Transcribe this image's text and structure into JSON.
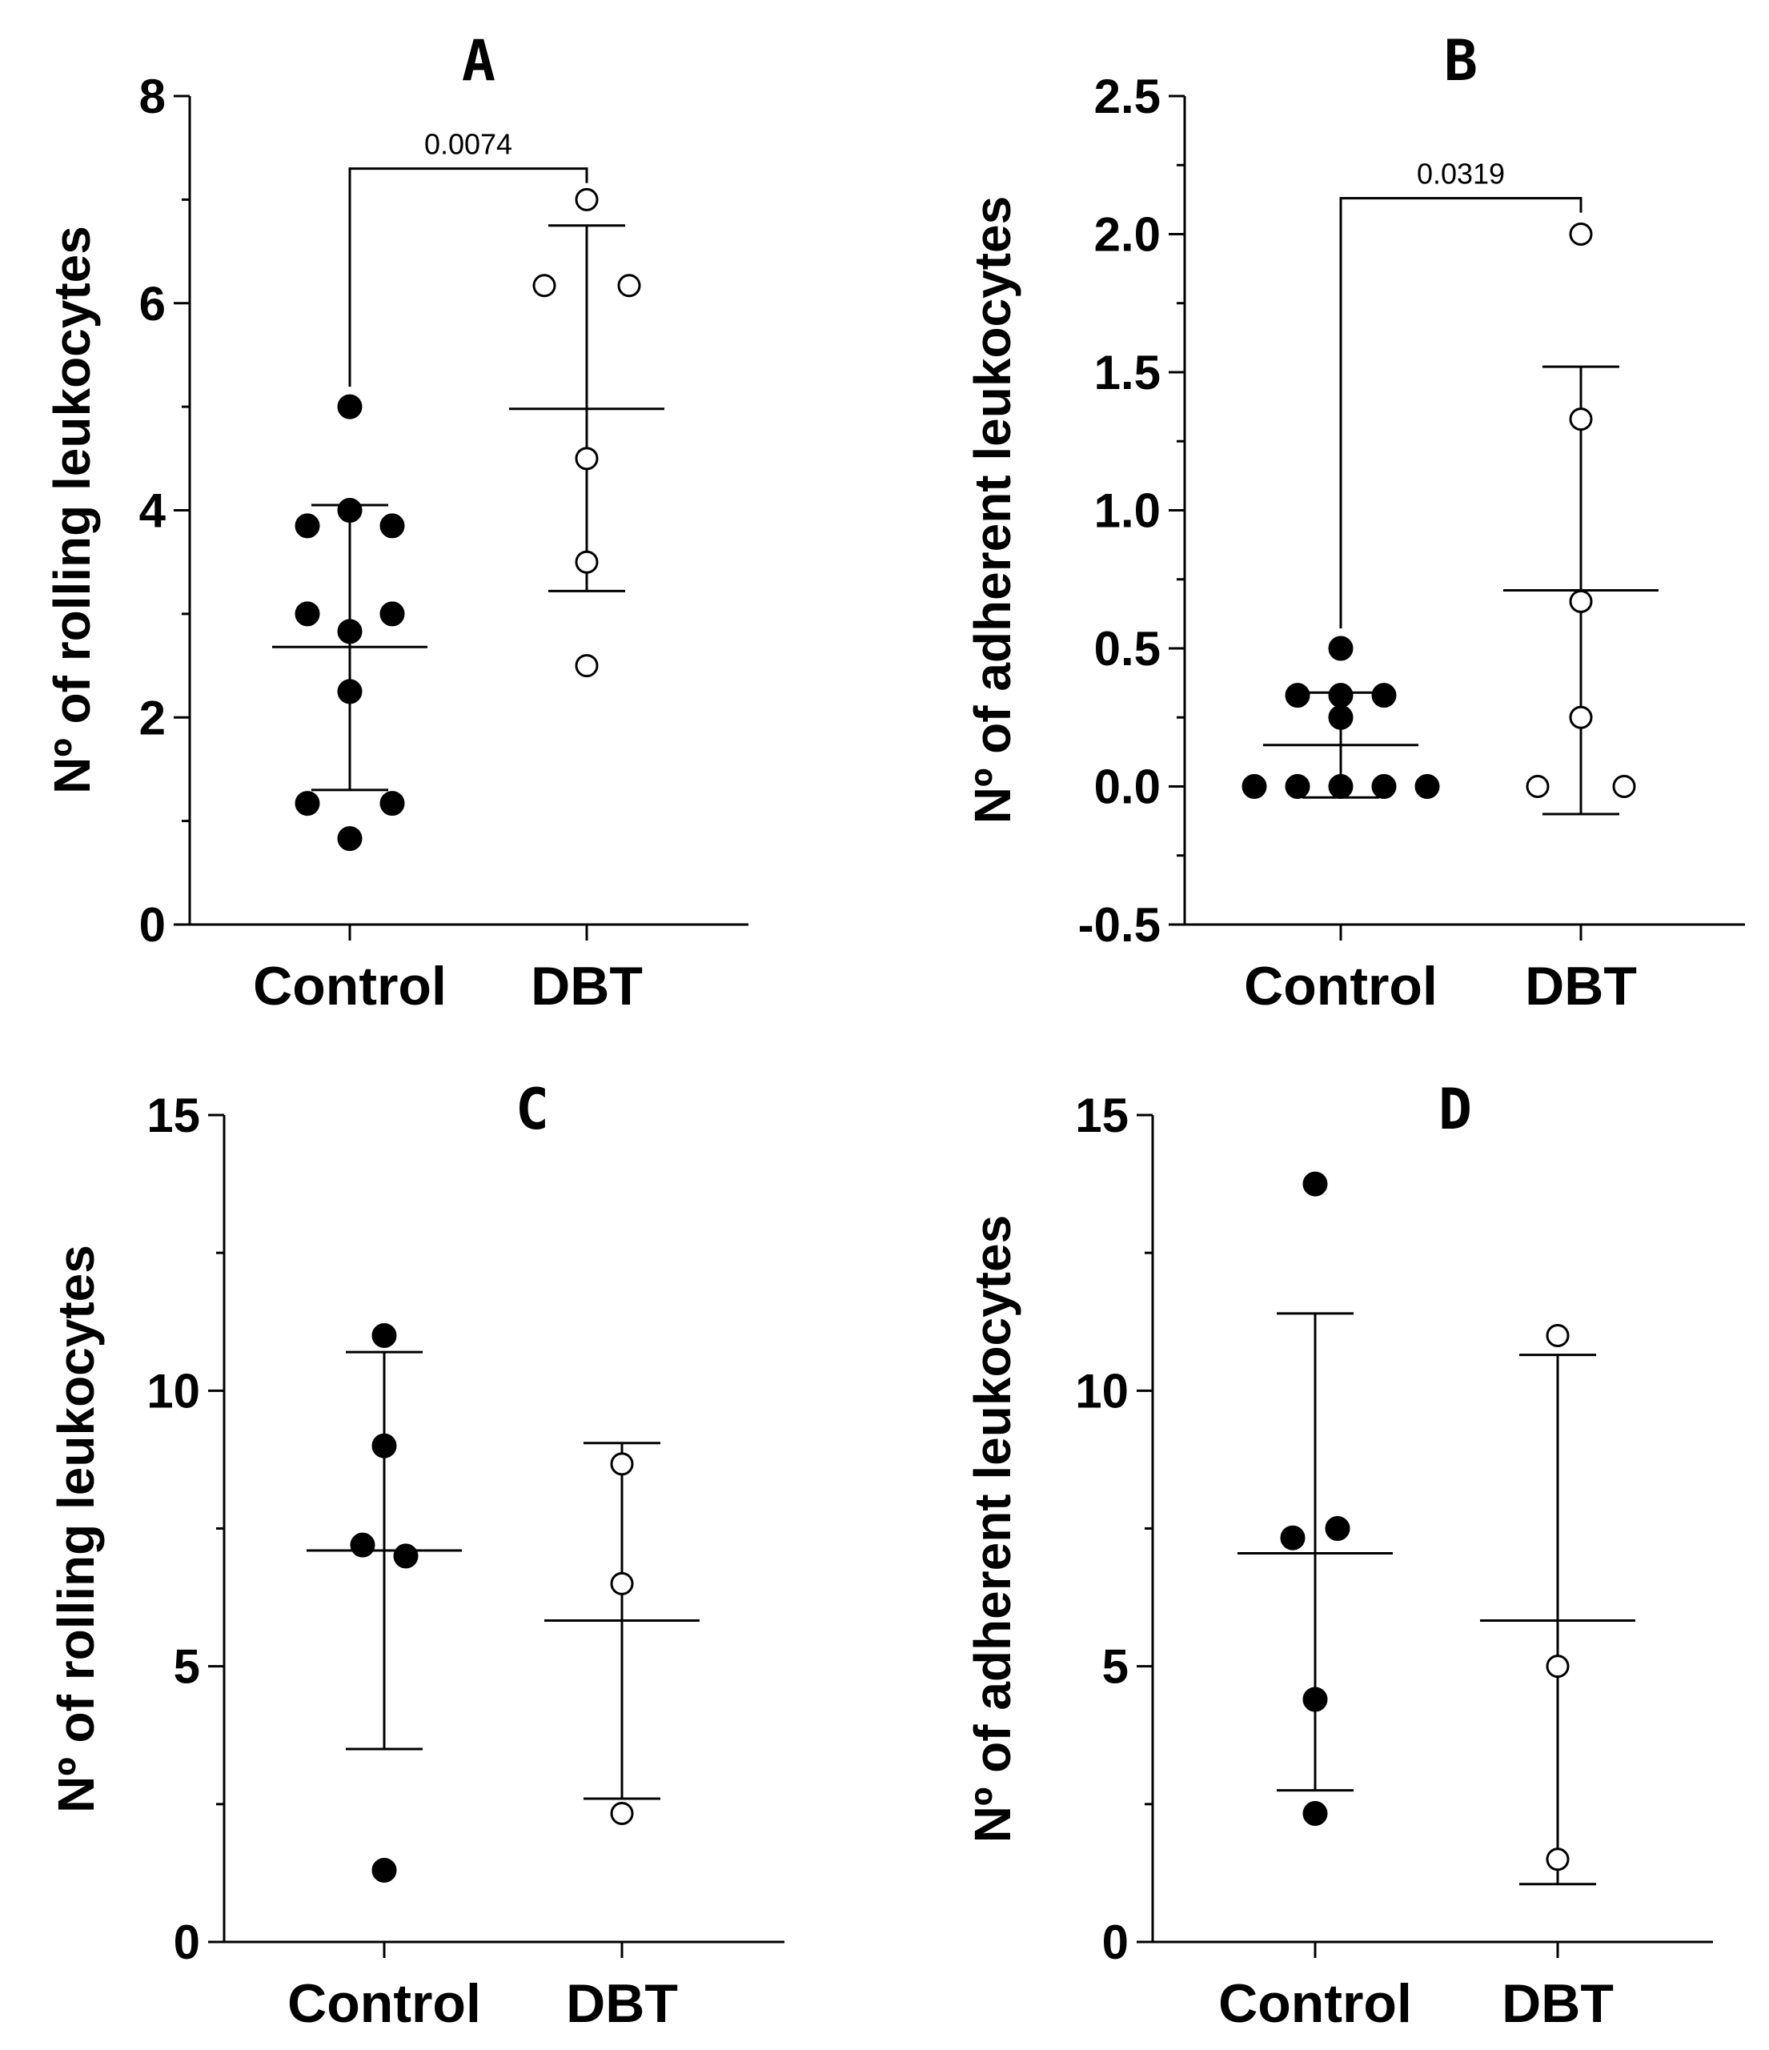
{
  "chart_data": [
    {
      "type": "scatter",
      "panel": "A",
      "ylabel": "Nº of rolling leukocytes",
      "ylim": [
        0,
        8
      ],
      "yticks": [
        "0",
        "2",
        "4",
        "6",
        "8"
      ],
      "yminor": [
        1,
        3,
        5,
        7
      ],
      "categories": [
        "Control",
        "DBT"
      ],
      "series": [
        {
          "name": "Control",
          "filled": true,
          "mean": 2.68,
          "sd_low": 1.3,
          "sd_high": 4.05,
          "points": [
            {
              "x": 0,
              "y": 5.0
            },
            {
              "x": -1,
              "y": 3.85
            },
            {
              "x": 0,
              "y": 4.0
            },
            {
              "x": 1,
              "y": 3.85
            },
            {
              "x": -1,
              "y": 3.0
            },
            {
              "x": 1,
              "y": 3.0
            },
            {
              "x": 0,
              "y": 2.83
            },
            {
              "x": 0,
              "y": 2.25
            },
            {
              "x": -1,
              "y": 1.17
            },
            {
              "x": 1,
              "y": 1.17
            },
            {
              "x": 0,
              "y": 0.83
            }
          ]
        },
        {
          "name": "DBT",
          "filled": false,
          "mean": 4.98,
          "sd_low": 3.22,
          "sd_high": 6.75,
          "points": [
            {
              "x": 0,
              "y": 7.0
            },
            {
              "x": -1,
              "y": 6.17
            },
            {
              "x": 1,
              "y": 6.17
            },
            {
              "x": 0,
              "y": 4.5
            },
            {
              "x": 0,
              "y": 3.5
            },
            {
              "x": 0,
              "y": 2.5
            }
          ]
        }
      ],
      "significance": {
        "label": "0.0074",
        "y": 7.3
      }
    },
    {
      "type": "scatter",
      "panel": "B",
      "ylabel": "Nº of adherent leukocytes",
      "ylim": [
        -0.5,
        2.5
      ],
      "yticks": [
        "-0.5",
        "0.0",
        "0.5",
        "1.0",
        "1.5",
        "2.0",
        "2.5"
      ],
      "yminor": [
        -0.25,
        0.25,
        0.75,
        1.25,
        1.75,
        2.25
      ],
      "categories": [
        "Control",
        "DBT"
      ],
      "series": [
        {
          "name": "Control",
          "filled": true,
          "mean": 0.15,
          "sd_low": -0.04,
          "sd_high": 0.34,
          "points": [
            {
              "x": 0,
              "y": 0.5
            },
            {
              "x": -1,
              "y": 0.33
            },
            {
              "x": 0,
              "y": 0.33
            },
            {
              "x": 1,
              "y": 0.33
            },
            {
              "x": 0,
              "y": 0.25
            },
            {
              "x": -2,
              "y": 0
            },
            {
              "x": -1,
              "y": 0
            },
            {
              "x": 0,
              "y": 0
            },
            {
              "x": 1,
              "y": 0
            },
            {
              "x": 2,
              "y": 0
            }
          ]
        },
        {
          "name": "DBT",
          "filled": false,
          "mean": 0.71,
          "sd_low": -0.1,
          "sd_high": 1.52,
          "points": [
            {
              "x": 0,
              "y": 2.0
            },
            {
              "x": 0,
              "y": 1.33
            },
            {
              "x": 0,
              "y": 0.67
            },
            {
              "x": 0,
              "y": 0.25
            },
            {
              "x": -1,
              "y": 0
            },
            {
              "x": 1,
              "y": 0
            }
          ]
        }
      ],
      "significance": {
        "label": "0.0319",
        "y": 2.13
      }
    },
    {
      "type": "scatter",
      "panel": "C",
      "ylabel": "Nº of rolling leukocytes",
      "ylim": [
        0,
        15
      ],
      "yticks": [
        "0",
        "5",
        "10",
        "15"
      ],
      "yminor": [
        2.5,
        7.5,
        12.5
      ],
      "categories": [
        "Control",
        "DBT"
      ],
      "series": [
        {
          "name": "Control",
          "filled": true,
          "mean": 7.1,
          "sd_low": 3.5,
          "sd_high": 10.7,
          "points": [
            {
              "x": 0,
              "y": 11.0
            },
            {
              "x": 0,
              "y": 9.0
            },
            {
              "x": -1,
              "y": 7.2
            },
            {
              "x": 1,
              "y": 7.0
            },
            {
              "x": 0,
              "y": 1.3
            }
          ]
        },
        {
          "name": "DBT",
          "filled": false,
          "mean": 5.83,
          "sd_low": 2.6,
          "sd_high": 9.05,
          "points": [
            {
              "x": 0,
              "y": 8.67
            },
            {
              "x": 0,
              "y": 6.5
            },
            {
              "x": 0,
              "y": 2.33
            }
          ]
        }
      ],
      "significance": null
    },
    {
      "type": "scatter",
      "panel": "D",
      "ylabel": "Nº of adherent leukocytes",
      "ylim": [
        0,
        15
      ],
      "yticks": [
        "0",
        "5",
        "10",
        "15"
      ],
      "yminor": [
        2.5,
        7.5,
        12.5
      ],
      "categories": [
        "Control",
        "DBT"
      ],
      "series": [
        {
          "name": "Control",
          "filled": true,
          "mean": 7.05,
          "sd_low": 2.75,
          "sd_high": 11.4,
          "points": [
            {
              "x": 0,
              "y": 13.75
            },
            {
              "x": -1,
              "y": 7.33
            },
            {
              "x": 1,
              "y": 7.5
            },
            {
              "x": 0,
              "y": 4.4
            },
            {
              "x": 0,
              "y": 2.33
            }
          ]
        },
        {
          "name": "DBT",
          "filled": false,
          "mean": 5.83,
          "sd_low": 1.05,
          "sd_high": 10.65,
          "points": [
            {
              "x": 0,
              "y": 11.0
            },
            {
              "x": 0,
              "y": 5.0
            },
            {
              "x": 0,
              "y": 1.5
            }
          ]
        }
      ],
      "significance": null
    }
  ]
}
